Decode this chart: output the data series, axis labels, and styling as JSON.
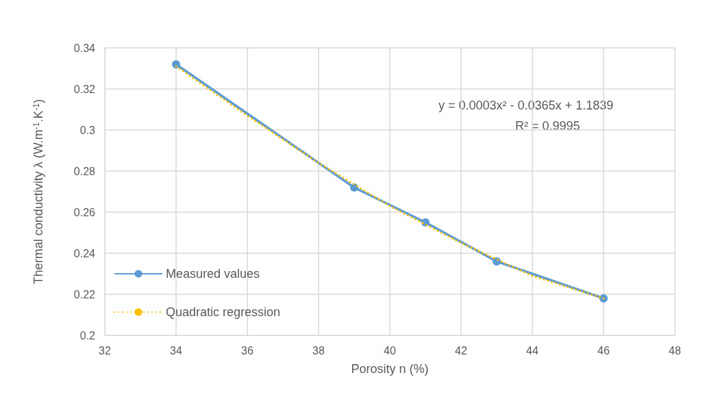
{
  "chart_data": {
    "type": "line",
    "xlabel": "Porosity n (%)",
    "ylabel": "Thermal conductivity λ (W.m$^{-1}$.K$^{-1}$)",
    "xlim": [
      32,
      48
    ],
    "xticks": [
      32,
      34,
      36,
      38,
      40,
      42,
      44,
      46,
      48
    ],
    "ylim": [
      0.2,
      0.34
    ],
    "yticks": [
      0.2,
      0.22,
      0.24,
      0.26,
      0.28,
      0.3,
      0.32,
      0.34
    ],
    "grid": true,
    "legend": "bottom left",
    "series": [
      {
        "name": "Measured values",
        "color": "#5b9bd5",
        "marker": "circle",
        "line_style": "solid",
        "x": [
          34,
          39,
          41,
          43,
          46
        ],
        "values": [
          0.332,
          0.272,
          0.255,
          0.236,
          0.218
        ]
      },
      {
        "name": "Quadratic regression",
        "color": "#ffc000",
        "marker": "none",
        "line_style": "dotted",
        "x": [
          34,
          36,
          38,
          40,
          42,
          44,
          46
        ],
        "values": [
          0.331,
          0.307,
          0.284,
          0.263,
          0.245,
          0.229,
          0.218
        ]
      }
    ],
    "annotations": [
      "y = 0.0003x² - 0.0365x + 1.1839",
      "R² = 0.9995"
    ]
  }
}
